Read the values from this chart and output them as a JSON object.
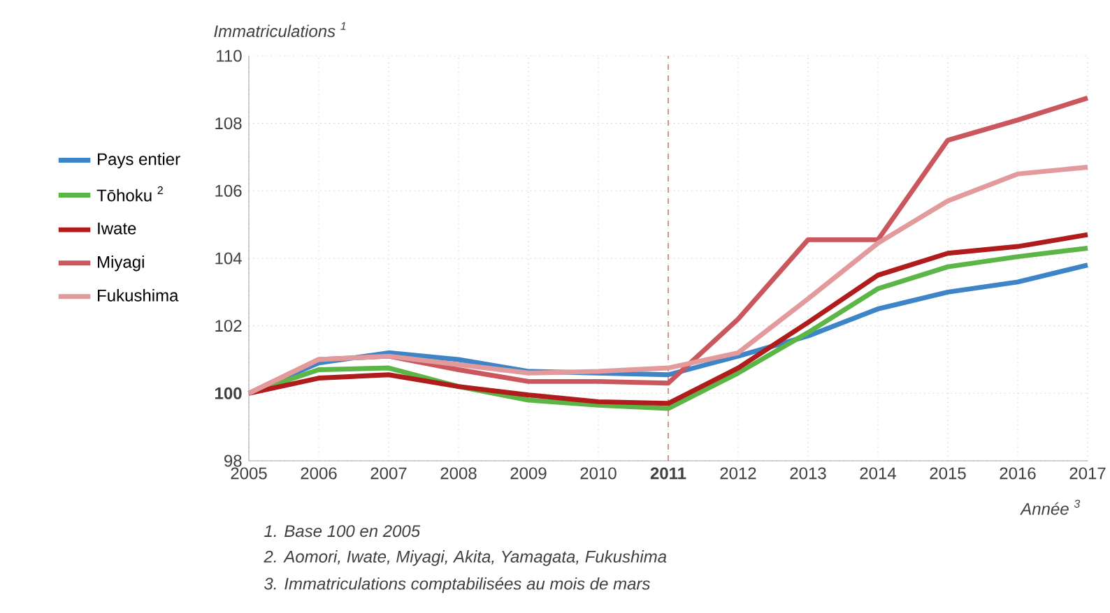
{
  "chart_data": {
    "type": "line",
    "ylabel": "Immatriculations $^{1}$",
    "xlabel": "Année $^{3}$",
    "x": [
      2005,
      2006,
      2007,
      2008,
      2009,
      2010,
      2011,
      2012,
      2013,
      2014,
      2015,
      2016,
      2017
    ],
    "xlim": [
      2005,
      2017
    ],
    "xticks": [
      2005,
      2006,
      2007,
      2008,
      2009,
      2010,
      {
        "value": 2011,
        "label": "**2011**"
      },
      2012,
      2013,
      2014,
      2015,
      2016,
      2017
    ],
    "ylim": [
      98,
      110
    ],
    "yticks": [
      98,
      {
        "value": 100,
        "label": "**100**"
      },
      102,
      104,
      106,
      108,
      110
    ],
    "grid": true,
    "legend": "left",
    "marker": "none",
    "line_style": "solid",
    "ref_lines": [
      {
        "axis": "x",
        "value": 2011,
        "color": "#c0392b",
        "line_style": "dashed"
      }
    ],
    "annotations": [
      "1. Base 100 en 2005",
      "2. Aomori, Iwate, Miyagi, Akita, Yamagata, Fukushima",
      "3. Immatriculations comptabilisées au mois de mars"
    ],
    "series": [
      {
        "name": "Pays entier",
        "color": "#3d85c6",
        "values": [
          100,
          100.9,
          101.2,
          101.0,
          100.65,
          100.6,
          100.55,
          101.1,
          101.7,
          102.5,
          103.0,
          103.3,
          103.8
        ]
      },
      {
        "name": "Tōhoku $^{2}$",
        "color": "#5cb547",
        "values": [
          100,
          100.7,
          100.75,
          100.2,
          99.8,
          99.65,
          99.55,
          100.6,
          101.8,
          103.1,
          103.75,
          104.05,
          104.3
        ]
      },
      {
        "name": "Iwate",
        "color": "#b01c1c",
        "values": [
          100,
          100.45,
          100.55,
          100.2,
          99.95,
          99.75,
          99.7,
          100.75,
          102.1,
          103.5,
          104.15,
          104.35,
          104.7
        ]
      },
      {
        "name": "Miyagi",
        "color": "#c9575d",
        "values": [
          100,
          101.0,
          101.1,
          100.7,
          100.35,
          100.35,
          100.3,
          102.2,
          104.55,
          104.55,
          107.5,
          108.1,
          108.75
        ]
      },
      {
        "name": "Fukushima",
        "color": "#e29a9c",
        "values": [
          100,
          101.0,
          101.1,
          100.85,
          100.6,
          100.65,
          100.75,
          101.2,
          102.8,
          104.45,
          105.7,
          106.5,
          106.7
        ]
      }
    ]
  }
}
